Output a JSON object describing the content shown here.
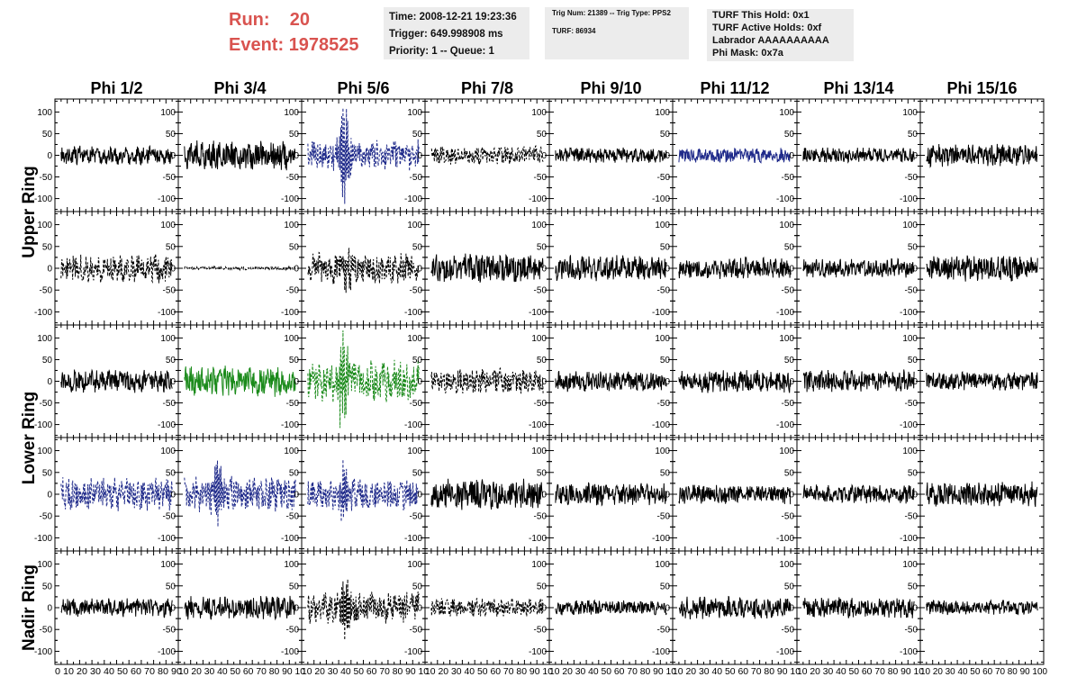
{
  "header": {
    "run_label": "Run:",
    "run_value": "20",
    "event_label": "Event:",
    "event_value": "1978525",
    "time": "Time: 2008-12-21 19:23:36",
    "trigger": "Trigger: 649.998908 ms",
    "priority": "Priority: 1 -- Queue: 1",
    "trig_num": "Trig Num: 21389 -- Trig Type: PPS2",
    "turf": "TURF: 86934",
    "turf_this_hold": "TURF This Hold: 0x1",
    "turf_active_holds": "TURF Active Holds: 0xf",
    "labrador": "Labrador AAAAAAAAAA",
    "phi_mask": "Phi Mask: 0x7a"
  },
  "colors": {
    "run_text": "#d9534f",
    "box_bg": "#ececec",
    "black": "#000000",
    "blue": "#1f2a8a",
    "green": "#1a8a1a"
  },
  "chart_data": {
    "type": "line",
    "columns": [
      "Phi 1/2",
      "Phi 3/4",
      "Phi 5/6",
      "Phi 7/8",
      "Phi 9/10",
      "Phi 11/12",
      "Phi 13/14",
      "Phi 15/16"
    ],
    "rows": [
      "Upper Ring",
      "Lower Ring",
      "Nadir Ring"
    ],
    "panel_rows": 5,
    "ring_spans": [
      {
        "name": "Upper Ring",
        "rows": [
          0,
          1
        ]
      },
      {
        "name": "Lower Ring",
        "rows": [
          2,
          3
        ]
      },
      {
        "name": "Nadir Ring",
        "rows": [
          4
        ]
      }
    ],
    "ylim": [
      -130,
      130
    ],
    "xlim": [
      0,
      100
    ],
    "y_ticks": [
      100,
      50,
      0,
      -50,
      -100
    ],
    "y_tick_labels": [
      "100",
      "50",
      "0",
      "-50",
      "-100"
    ],
    "x_ticks": [
      0,
      10,
      20,
      30,
      40,
      50,
      60,
      70,
      80,
      90,
      100
    ],
    "x_tick_labels_first": "0 10 20 30 40 50 60 70 80 90",
    "x_tick_labels_mid": "10 20 30 40 50 60 70 80 90 10",
    "x_tick_labels_last": "10 20 30 40 50 60 70 80 90 100",
    "grid": false,
    "panels": [
      [
        {
          "color": "black",
          "style": "solid",
          "amp": 18,
          "burst": 0,
          "burst_x": 0
        },
        {
          "color": "black",
          "style": "solid",
          "amp": 28,
          "burst": 0,
          "burst_x": 0
        },
        {
          "color": "blue",
          "style": "dashed",
          "amp": 30,
          "burst": 125,
          "burst_x": 33
        },
        {
          "color": "black",
          "style": "dashed",
          "amp": 18,
          "burst": 0,
          "burst_x": 0
        },
        {
          "color": "black",
          "style": "solid",
          "amp": 15,
          "burst": 0,
          "burst_x": 0
        },
        {
          "color": "blue",
          "style": "solid",
          "amp": 14,
          "burst": 0,
          "burst_x": 0
        },
        {
          "color": "black",
          "style": "solid",
          "amp": 15,
          "burst": 0,
          "burst_x": 0
        },
        {
          "color": "black",
          "style": "solid",
          "amp": 22,
          "burst": 0,
          "burst_x": 0
        }
      ],
      [
        {
          "color": "black",
          "style": "dashed",
          "amp": 28,
          "burst": 0,
          "burst_x": 0
        },
        {
          "color": "black",
          "style": "dashed",
          "amp": 3,
          "burst": 0,
          "burst_x": 0
        },
        {
          "color": "black",
          "style": "dashed",
          "amp": 30,
          "burst": 40,
          "burst_x": 35
        },
        {
          "color": "black",
          "style": "solid",
          "amp": 28,
          "burst": 0,
          "burst_x": 0
        },
        {
          "color": "black",
          "style": "solid",
          "amp": 25,
          "burst": 0,
          "burst_x": 0
        },
        {
          "color": "black",
          "style": "solid",
          "amp": 20,
          "burst": 0,
          "burst_x": 0
        },
        {
          "color": "black",
          "style": "solid",
          "amp": 18,
          "burst": 0,
          "burst_x": 0
        },
        {
          "color": "black",
          "style": "solid",
          "amp": 25,
          "burst": 0,
          "burst_x": 0
        }
      ],
      [
        {
          "color": "black",
          "style": "solid",
          "amp": 22,
          "burst": 0,
          "burst_x": 0
        },
        {
          "color": "green",
          "style": "solid",
          "amp": 30,
          "burst": 0,
          "burst_x": 0
        },
        {
          "color": "green",
          "style": "dashed",
          "amp": 40,
          "burst": 125,
          "burst_x": 32
        },
        {
          "color": "black",
          "style": "dashed",
          "amp": 25,
          "burst": 0,
          "burst_x": 0
        },
        {
          "color": "black",
          "style": "solid",
          "amp": 20,
          "burst": 0,
          "burst_x": 0
        },
        {
          "color": "black",
          "style": "solid",
          "amp": 22,
          "burst": 0,
          "burst_x": 0
        },
        {
          "color": "black",
          "style": "solid",
          "amp": 22,
          "burst": 0,
          "burst_x": 0
        },
        {
          "color": "black",
          "style": "solid",
          "amp": 18,
          "burst": 0,
          "burst_x": 0
        }
      ],
      [
        {
          "color": "blue",
          "style": "dashed",
          "amp": 32,
          "burst": 0,
          "burst_x": 0
        },
        {
          "color": "blue",
          "style": "dashed",
          "amp": 35,
          "burst": 90,
          "burst_x": 30
        },
        {
          "color": "blue",
          "style": "dashed",
          "amp": 30,
          "burst": 65,
          "burst_x": 32
        },
        {
          "color": "black",
          "style": "solid",
          "amp": 30,
          "burst": 0,
          "burst_x": 0
        },
        {
          "color": "black",
          "style": "solid",
          "amp": 22,
          "burst": 0,
          "burst_x": 0
        },
        {
          "color": "black",
          "style": "solid",
          "amp": 20,
          "burst": 0,
          "burst_x": 0
        },
        {
          "color": "black",
          "style": "solid",
          "amp": 18,
          "burst": 0,
          "burst_x": 0
        },
        {
          "color": "black",
          "style": "solid",
          "amp": 24,
          "burst": 0,
          "burst_x": 0
        }
      ],
      [
        {
          "color": "black",
          "style": "solid",
          "amp": 18,
          "burst": 0,
          "burst_x": 0
        },
        {
          "color": "black",
          "style": "solid",
          "amp": 22,
          "burst": 0,
          "burst_x": 0
        },
        {
          "color": "black",
          "style": "dashed",
          "amp": 30,
          "burst": 85,
          "burst_x": 35
        },
        {
          "color": "black",
          "style": "dashed",
          "amp": 18,
          "burst": 0,
          "burst_x": 0
        },
        {
          "color": "black",
          "style": "solid",
          "amp": 14,
          "burst": 0,
          "burst_x": 0
        },
        {
          "color": "black",
          "style": "solid",
          "amp": 22,
          "burst": 0,
          "burst_x": 0
        },
        {
          "color": "black",
          "style": "solid",
          "amp": 20,
          "burst": 0,
          "burst_x": 0
        },
        {
          "color": "black",
          "style": "solid",
          "amp": 14,
          "burst": 0,
          "burst_x": 0
        }
      ]
    ]
  }
}
